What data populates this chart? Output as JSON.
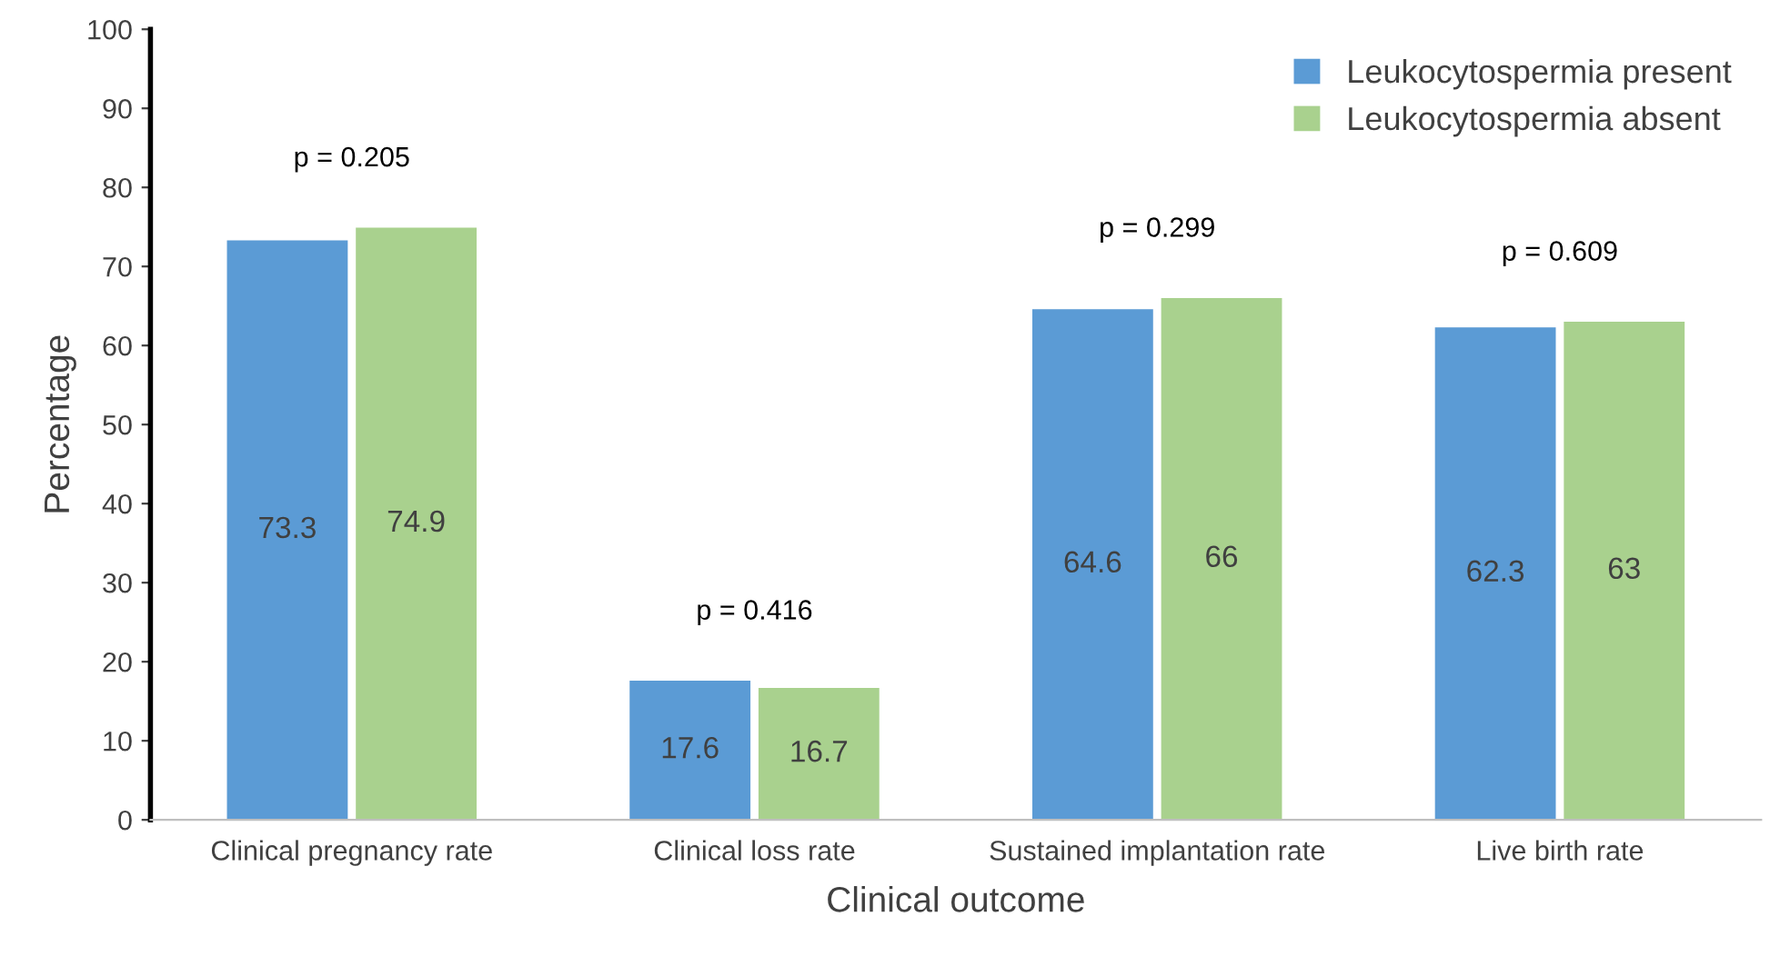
{
  "chart_data": {
    "type": "bar",
    "xlabel": "Clinical outcome",
    "ylabel": "Percentage",
    "categories": [
      "Clinical pregnancy rate",
      "Clinical loss rate",
      "Sustained implantation rate",
      "Live birth rate"
    ],
    "series": [
      {
        "name": "Leukocytospermia present",
        "color": "#5b9bd5",
        "values": [
          73.3,
          17.6,
          64.6,
          62.3
        ]
      },
      {
        "name": "Leukocytospermia absent",
        "color": "#a9d18e",
        "values": [
          74.9,
          16.7,
          66,
          63
        ]
      }
    ],
    "ylim": [
      0,
      100
    ],
    "yticks": [
      0,
      10,
      20,
      30,
      40,
      50,
      60,
      70,
      80,
      90,
      100
    ],
    "grid": false,
    "legend": "top right",
    "data_labels": true,
    "annotations": [
      "p = 0.205",
      "p = 0.416",
      "p = 0.299",
      "p = 0.609"
    ]
  }
}
